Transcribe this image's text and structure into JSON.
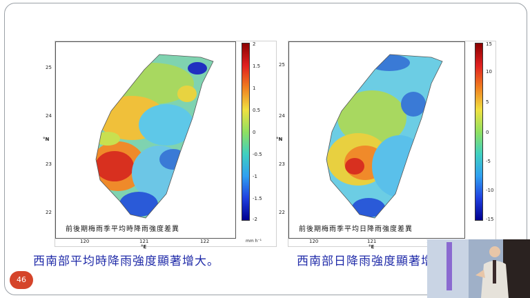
{
  "slide": {
    "page_number": "46"
  },
  "left_map": {
    "caption": "前後期梅雨季平均時降雨強度差異",
    "y_ticks": [
      "25",
      "24",
      "23",
      "22"
    ],
    "x_ticks": [
      "120",
      "121",
      "122"
    ],
    "x_unit": "°E",
    "y_unit": "°N",
    "colorbar_ticks": [
      "2",
      "1.5",
      "1",
      "0.5",
      "0",
      "-0.5",
      "-1",
      "-1.5",
      "-2"
    ],
    "colorbar_unit": "mm h⁻¹"
  },
  "right_map": {
    "caption": "前後期梅雨季平均日降雨強度差異",
    "y_ticks": [
      "25",
      "24",
      "23",
      "22"
    ],
    "x_ticks": [
      "120",
      "121",
      "122"
    ],
    "x_unit": "°E",
    "y_unit": "°N",
    "colorbar_ticks": [
      "15",
      "10",
      "5",
      "0",
      "-5",
      "-10",
      "-15"
    ]
  },
  "subtitles": {
    "left": "西南部平均時降雨強度顯著增大。",
    "right": "西南部日降雨強度顯著增大。"
  },
  "colors": {
    "subtitle_text": "#1f2aa8",
    "page_badge": "#d5442a"
  }
}
